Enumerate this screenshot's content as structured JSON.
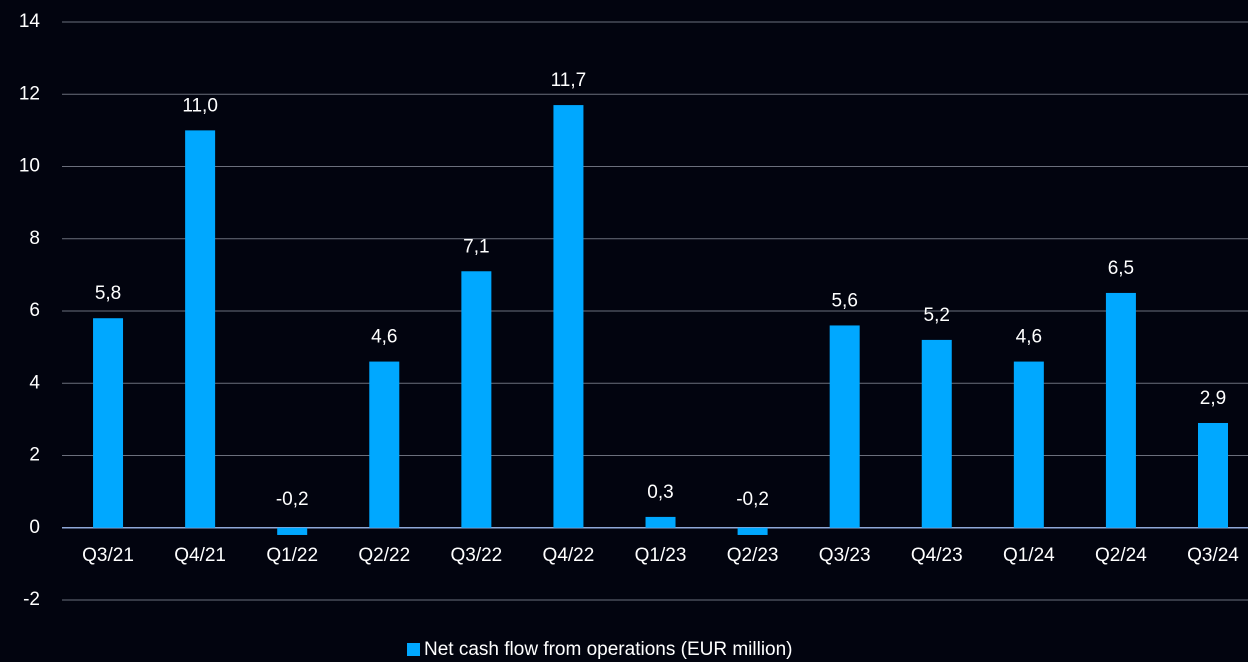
{
  "chart_data": {
    "type": "bar",
    "categories": [
      "Q3/21",
      "Q4/21",
      "Q1/22",
      "Q2/22",
      "Q3/22",
      "Q4/22",
      "Q1/23",
      "Q2/23",
      "Q3/23",
      "Q4/23",
      "Q1/24",
      "Q2/24",
      "Q3/24"
    ],
    "series": [
      {
        "name": "Net cash flow from operations (EUR million)",
        "color": "#00a8ff",
        "values": [
          5.8,
          11.0,
          -0.2,
          4.6,
          7.1,
          11.7,
          0.3,
          -0.2,
          5.6,
          5.2,
          4.6,
          6.5,
          2.9
        ],
        "value_labels": [
          "5,8",
          "11,0",
          "-0,2",
          "4,6",
          "7,1",
          "11,7",
          "0,3",
          "-0,2",
          "5,6",
          "5,2",
          "4,6",
          "6,5",
          "2,9"
        ]
      }
    ],
    "ylim": [
      -2,
      14
    ],
    "yticks": [
      -2,
      0,
      2,
      4,
      6,
      8,
      10,
      12,
      14
    ],
    "grid": true,
    "legend": "bottom"
  }
}
